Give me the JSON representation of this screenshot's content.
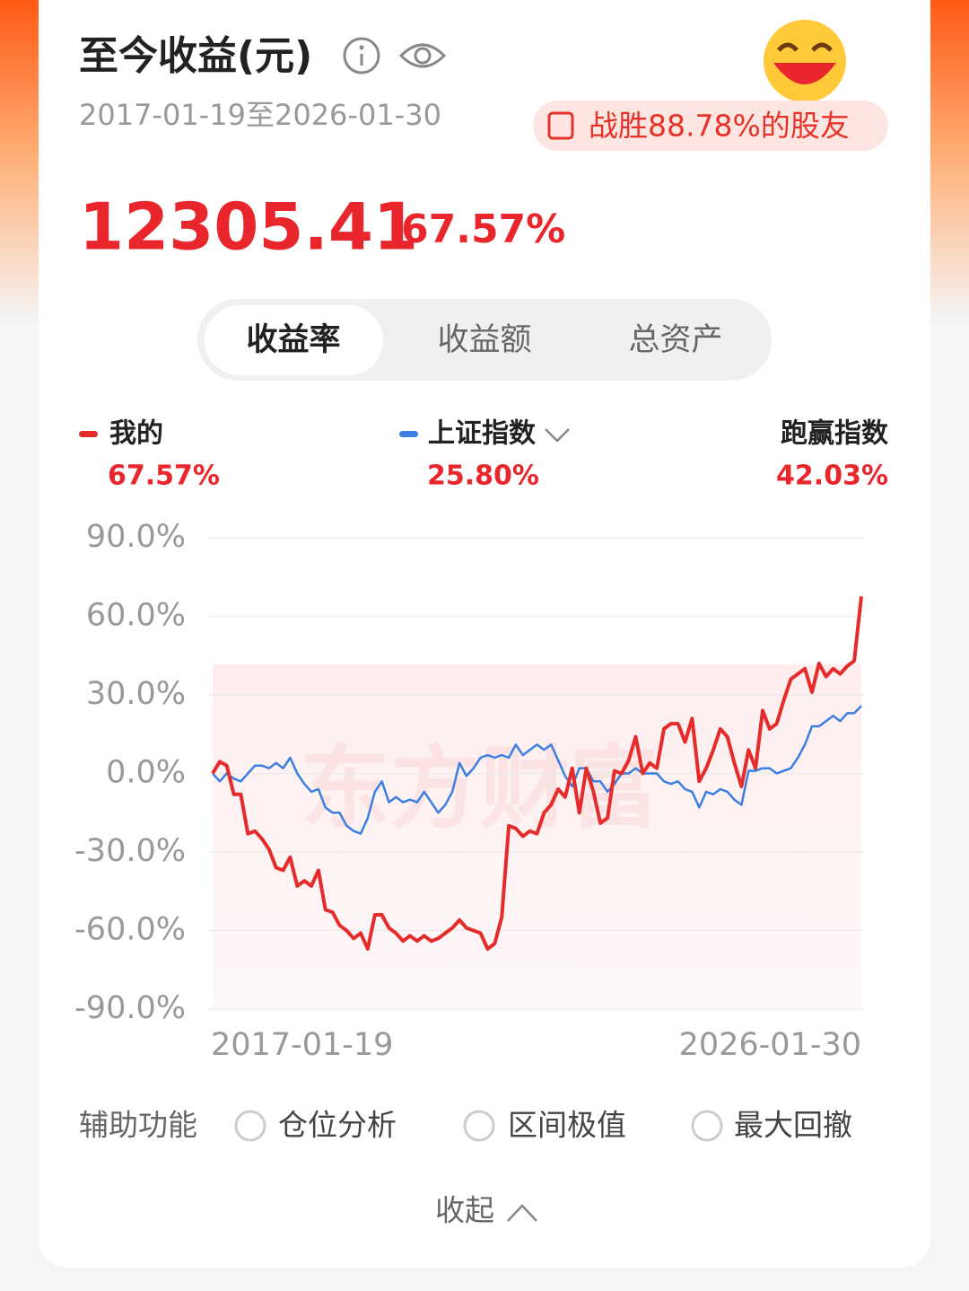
{
  "header": {
    "title": "至今收益(元)",
    "date_range": "2017-01-19至2026-01-30",
    "badge": "战胜88.78%的股友"
  },
  "summary": {
    "amount": "12305.41",
    "rate": "67.57%"
  },
  "tabs": [
    "收益率",
    "收益额",
    "总资产"
  ],
  "tools": {
    "label": "辅助功能",
    "options": [
      "仓位分析",
      "区间极值",
      "最大回撤"
    ]
  },
  "collapse": "收起",
  "chart_data": {
    "type": "line",
    "watermark": "东方财富",
    "categories": [
      "2017-01-19",
      null,
      null,
      null,
      null,
      null,
      null,
      null,
      null,
      null,
      null,
      null,
      null,
      null,
      null,
      null,
      null,
      null,
      null,
      null,
      null,
      null,
      null,
      null,
      null,
      null,
      null,
      null,
      null,
      null,
      null,
      null,
      null,
      null,
      null,
      null,
      null,
      null,
      null,
      null,
      null,
      null,
      null,
      null,
      null,
      null,
      null,
      null,
      null,
      null,
      null,
      null,
      null,
      null,
      null,
      null,
      null,
      null,
      null,
      null,
      null,
      null,
      null,
      null,
      null,
      null,
      null,
      null,
      null,
      null,
      null,
      null,
      null,
      null,
      null,
      null,
      null,
      null,
      null,
      null,
      null,
      null,
      null,
      null,
      null,
      null,
      null,
      null,
      null,
      null,
      null,
      null,
      "2026-01-30"
    ],
    "series": [
      {
        "name": "我的",
        "color": "#e62b2b",
        "legend_value": "67.57%",
        "values": [
          0,
          4.5,
          3,
          -8,
          -8,
          -23,
          -22,
          -25,
          -29,
          -36,
          -37,
          -32,
          -43,
          -41,
          -43,
          -37,
          -52,
          -53,
          -58,
          -60,
          -63,
          -61,
          -67,
          -54,
          -54,
          -59,
          -61,
          -64,
          -62,
          -64,
          -62,
          -64,
          -63,
          -61,
          -59,
          -56,
          -59,
          -60,
          -61,
          -67,
          -65,
          -55,
          -20,
          -21,
          -24,
          -22,
          -23,
          -15,
          -12,
          -6,
          -9,
          2,
          -15,
          2,
          -7,
          -19,
          -17,
          1,
          0,
          5,
          14,
          0,
          4,
          2,
          17,
          19,
          19,
          12,
          21,
          -3,
          2,
          9,
          17,
          14,
          4,
          -5,
          9,
          2,
          24,
          17,
          19,
          28,
          36,
          38,
          40,
          31,
          42,
          37,
          40,
          38,
          41,
          43,
          67.57
        ]
      },
      {
        "name": "上证指数",
        "color": "#3c7fe0",
        "legend_value": "25.80%",
        "values": [
          0,
          -3,
          0,
          -2,
          -3,
          0,
          3,
          3,
          2,
          4,
          2,
          6,
          0,
          -4,
          -7,
          -6,
          -13,
          -15,
          -15,
          -20,
          -22,
          -23,
          -17,
          -7,
          -3,
          -11,
          -9,
          -11,
          -10,
          -11,
          -7,
          -11,
          -15,
          -12,
          -7,
          4,
          -1,
          2,
          6,
          7,
          6,
          7,
          6,
          11,
          7,
          9,
          11,
          9,
          11,
          5,
          -1,
          -5,
          2,
          2,
          -3,
          -3,
          -7,
          -4,
          0,
          0,
          2,
          0,
          0,
          0,
          -3,
          -4,
          -3,
          -6,
          -7,
          -13,
          -7,
          -8,
          -6,
          -7,
          -10,
          -12,
          1,
          1,
          2,
          2,
          0,
          1,
          2,
          6,
          11,
          18,
          18,
          20,
          22,
          20,
          23,
          23,
          25.8
        ]
      }
    ],
    "excess": {
      "name": "跑赢指数",
      "value": "42.03%"
    },
    "ylim": [
      -90,
      90
    ],
    "yticks": [
      {
        "value": -90,
        "label": "-90.0%"
      },
      {
        "value": -60,
        "label": "-60.0%"
      },
      {
        "value": -30,
        "label": "-30.0%"
      },
      {
        "value": 0,
        "label": "0.0%"
      },
      {
        "value": 30,
        "label": "30.0%"
      },
      {
        "value": 60,
        "label": "60.0%"
      },
      {
        "value": 90,
        "label": "90.0%"
      }
    ],
    "grid": true
  }
}
